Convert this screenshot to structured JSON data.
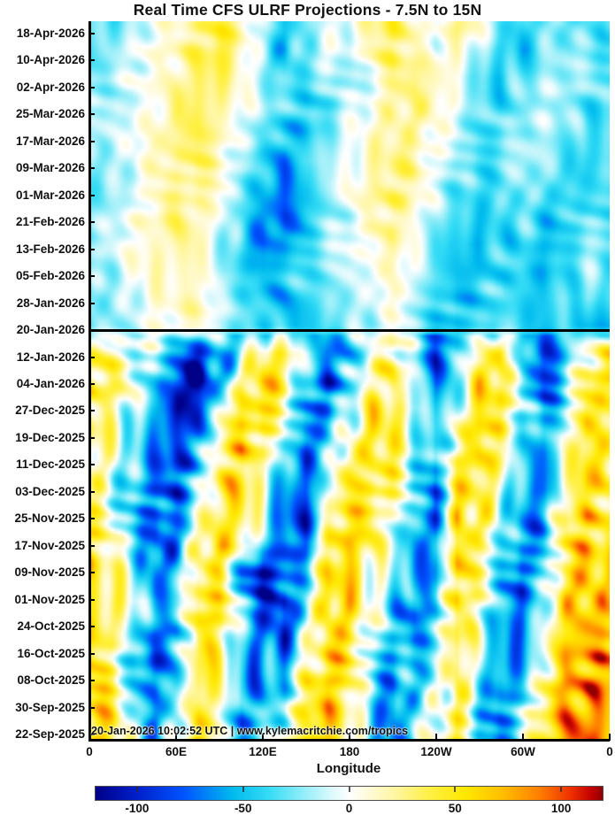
{
  "title": "Real Time CFS ULRF Projections - 7.5N to 15N",
  "watermark": "20-Jan-2026 10:02:52 UTC | www.kylemacritchie.com/tropics",
  "axes": {
    "x_label": "Longitude",
    "x_ticks": [
      "0",
      "60E",
      "120E",
      "180",
      "120W",
      "60W",
      "0"
    ],
    "y_ticks": [
      "18-Apr-2026",
      "10-Apr-2026",
      "02-Apr-2026",
      "25-Mar-2026",
      "17-Mar-2026",
      "09-Mar-2026",
      "01-Mar-2026",
      "21-Feb-2026",
      "13-Feb-2026",
      "05-Feb-2026",
      "28-Jan-2026",
      "20-Jan-2026",
      "12-Jan-2026",
      "04-Jan-2026",
      "27-Dec-2025",
      "19-Dec-2025",
      "11-Dec-2025",
      "03-Dec-2025",
      "25-Nov-2025",
      "17-Nov-2025",
      "09-Nov-2025",
      "01-Nov-2025",
      "24-Oct-2025",
      "16-Oct-2025",
      "08-Oct-2025",
      "30-Sep-2025",
      "22-Sep-2025"
    ]
  },
  "now_line": {
    "date": "20-Jan-2026",
    "y_tick_index": 11
  },
  "colorbar": {
    "tick_labels": [
      "-100",
      "-50",
      "0",
      "50",
      "100"
    ],
    "tick_values": [
      -100,
      -50,
      0,
      50,
      100
    ],
    "range": [
      -120,
      120
    ]
  },
  "chart_data": {
    "type": "heatmap",
    "title": "Real Time CFS ULRF Projections - 7.5N to 15N",
    "xlabel": "Longitude",
    "x_range_deg": [
      0,
      360
    ],
    "x_tick_labels": [
      "0",
      "60E",
      "120E",
      "180",
      "120W",
      "60W",
      "0"
    ],
    "lon_grid_deg": [
      0,
      15,
      30,
      45,
      60,
      75,
      90,
      105,
      120,
      135,
      150,
      165,
      180,
      195,
      210,
      225,
      240,
      255,
      270,
      285,
      300,
      315,
      330,
      345,
      360
    ],
    "y_dates": [
      "18-Apr-2026",
      "10-Apr-2026",
      "02-Apr-2026",
      "25-Mar-2026",
      "17-Mar-2026",
      "09-Mar-2026",
      "01-Mar-2026",
      "21-Feb-2026",
      "13-Feb-2026",
      "05-Feb-2026",
      "28-Jan-2026",
      "20-Jan-2026",
      "12-Jan-2026",
      "04-Jan-2026",
      "27-Dec-2025",
      "19-Dec-2025",
      "11-Dec-2025",
      "03-Dec-2025",
      "25-Nov-2025",
      "17-Nov-2025",
      "09-Nov-2025",
      "01-Nov-2025",
      "24-Oct-2025",
      "16-Oct-2025",
      "08-Oct-2025",
      "30-Sep-2025",
      "22-Sep-2025"
    ],
    "now_line_date": "20-Jan-2026",
    "value_range": [
      -120,
      120
    ],
    "legend_position": "bottom",
    "grid": false,
    "colormap_stops": [
      [
        -120,
        "#000088"
      ],
      [
        -100,
        "#0020CC"
      ],
      [
        -78,
        "#0055FF"
      ],
      [
        -55,
        "#00BBEE"
      ],
      [
        -38,
        "#35DCF5"
      ],
      [
        -20,
        "#9BEFF9"
      ],
      [
        -8,
        "#DDF9FC"
      ],
      [
        0,
        "#FFFFFF"
      ],
      [
        8,
        "#FFFBDD"
      ],
      [
        22,
        "#FFF6A0"
      ],
      [
        38,
        "#FFF045"
      ],
      [
        55,
        "#FFE800"
      ],
      [
        72,
        "#FFC000"
      ],
      [
        90,
        "#FF7F00"
      ],
      [
        105,
        "#EE3000"
      ],
      [
        115,
        "#C00000"
      ],
      [
        120,
        "#900000"
      ]
    ],
    "values": [
      [
        -30,
        -35,
        -15,
        0,
        10,
        30,
        45,
        25,
        -15,
        -50,
        -30,
        -10,
        0,
        25,
        40,
        15,
        -10,
        30,
        15,
        -30,
        -50,
        -25,
        -30,
        -40,
        -30
      ],
      [
        -40,
        -25,
        -10,
        5,
        15,
        35,
        45,
        20,
        -25,
        -60,
        -25,
        -5,
        -10,
        20,
        40,
        20,
        0,
        20,
        -15,
        -45,
        -55,
        -30,
        -20,
        -30,
        -35
      ],
      [
        -30,
        -15,
        -5,
        5,
        20,
        40,
        35,
        10,
        -20,
        -40,
        -35,
        -20,
        -25,
        -5,
        25,
        35,
        15,
        -5,
        -30,
        -50,
        -35,
        -20,
        -15,
        -25,
        -30
      ],
      [
        -25,
        -20,
        -10,
        5,
        25,
        40,
        25,
        0,
        -15,
        -35,
        -45,
        -35,
        -15,
        5,
        20,
        30,
        20,
        -5,
        -35,
        -40,
        -25,
        -15,
        -20,
        -35,
        -40
      ],
      [
        -20,
        -10,
        0,
        15,
        30,
        40,
        20,
        -10,
        -30,
        -55,
        -55,
        -25,
        -5,
        10,
        25,
        20,
        5,
        -15,
        -35,
        -35,
        -20,
        -15,
        -25,
        -45,
        -35
      ],
      [
        -30,
        -20,
        -5,
        15,
        30,
        35,
        10,
        -15,
        -45,
        -70,
        -40,
        -20,
        0,
        15,
        30,
        25,
        0,
        -25,
        -40,
        -30,
        -15,
        -20,
        -35,
        -50,
        -40
      ],
      [
        -35,
        -25,
        -10,
        10,
        25,
        30,
        5,
        -25,
        -60,
        -80,
        -50,
        -20,
        5,
        20,
        35,
        20,
        -10,
        -30,
        -45,
        -35,
        -25,
        -30,
        -45,
        -40,
        -35
      ],
      [
        -25,
        -15,
        0,
        15,
        30,
        25,
        -5,
        -35,
        -70,
        -90,
        -55,
        -30,
        -10,
        15,
        30,
        10,
        -20,
        -40,
        -50,
        -40,
        -35,
        -45,
        -50,
        -35,
        -30
      ],
      [
        -20,
        -10,
        5,
        20,
        25,
        15,
        -15,
        -45,
        -80,
        -70,
        -40,
        -20,
        -5,
        10,
        20,
        0,
        -30,
        -50,
        -60,
        -45,
        -40,
        -55,
        -45,
        -30,
        -25
      ],
      [
        -30,
        -15,
        0,
        15,
        20,
        10,
        -20,
        -45,
        -60,
        -50,
        -30,
        -25,
        -15,
        0,
        15,
        -5,
        -35,
        -55,
        -50,
        -40,
        -45,
        -60,
        -40,
        -25,
        -30
      ],
      [
        -35,
        -20,
        -10,
        5,
        15,
        20,
        -10,
        -35,
        -50,
        -60,
        -45,
        -30,
        -20,
        -10,
        10,
        -15,
        -40,
        -60,
        -45,
        -35,
        -50,
        -55,
        -35,
        -30,
        -40
      ],
      [
        -30,
        -25,
        -15,
        0,
        10,
        15,
        -10,
        -30,
        -45,
        -55,
        -50,
        -35,
        -25,
        -15,
        0,
        -20,
        -45,
        -55,
        -40,
        -30,
        -45,
        -50,
        -45,
        -55,
        -60
      ],
      [
        30,
        20,
        0,
        -25,
        -60,
        -85,
        -60,
        -20,
        40,
        30,
        -20,
        -60,
        -45,
        0,
        30,
        -25,
        -75,
        -35,
        25,
        45,
        -35,
        -80,
        -45,
        20,
        35
      ],
      [
        40,
        30,
        0,
        -30,
        -90,
        -110,
        -55,
        20,
        55,
        35,
        -40,
        -80,
        -30,
        20,
        40,
        -20,
        -70,
        -20,
        40,
        55,
        -30,
        -80,
        -30,
        30,
        50
      ],
      [
        35,
        20,
        -10,
        -45,
        -105,
        -80,
        -10,
        50,
        50,
        0,
        -50,
        -60,
        -10,
        30,
        45,
        0,
        -50,
        -10,
        50,
        45,
        -20,
        -60,
        -20,
        40,
        45
      ],
      [
        30,
        10,
        -20,
        -55,
        -90,
        -60,
        15,
        55,
        40,
        -20,
        -60,
        -40,
        10,
        40,
        40,
        -10,
        -40,
        10,
        55,
        30,
        -30,
        -50,
        0,
        45,
        40
      ],
      [
        25,
        0,
        -30,
        -60,
        -80,
        -40,
        30,
        50,
        20,
        -40,
        -70,
        -20,
        30,
        45,
        30,
        -20,
        -50,
        30,
        50,
        20,
        -40,
        -60,
        10,
        50,
        35
      ],
      [
        20,
        -10,
        -40,
        -70,
        -70,
        -20,
        40,
        45,
        0,
        -50,
        -80,
        0,
        40,
        50,
        20,
        -30,
        -60,
        40,
        45,
        0,
        -50,
        -70,
        20,
        55,
        30
      ],
      [
        30,
        0,
        -30,
        -80,
        -60,
        0,
        45,
        40,
        -20,
        -60,
        -90,
        20,
        50,
        40,
        0,
        -40,
        -70,
        45,
        40,
        -10,
        -60,
        -50,
        30,
        50,
        40
      ],
      [
        40,
        10,
        -20,
        -90,
        -50,
        25,
        50,
        30,
        -40,
        -70,
        -70,
        40,
        55,
        30,
        -10,
        -50,
        -60,
        50,
        30,
        -20,
        -70,
        -40,
        40,
        55,
        45
      ],
      [
        45,
        20,
        -10,
        -70,
        -40,
        40,
        20,
        -60,
        -110,
        -70,
        -30,
        50,
        50,
        20,
        -20,
        -60,
        -50,
        55,
        20,
        -30,
        -80,
        -30,
        45,
        60,
        50
      ],
      [
        50,
        30,
        0,
        -50,
        -30,
        50,
        45,
        -20,
        -70,
        -100,
        -20,
        55,
        45,
        10,
        -30,
        -70,
        -40,
        50,
        10,
        -40,
        -70,
        -20,
        50,
        60,
        55
      ],
      [
        45,
        35,
        -20,
        -60,
        -50,
        45,
        40,
        -30,
        -70,
        -80,
        -10,
        50,
        40,
        0,
        -40,
        -60,
        -30,
        45,
        0,
        -50,
        -60,
        -10,
        55,
        65,
        60
      ],
      [
        40,
        20,
        -40,
        -80,
        -40,
        35,
        30,
        -40,
        -60,
        -60,
        10,
        55,
        35,
        -10,
        -50,
        -50,
        -20,
        40,
        -10,
        -60,
        -50,
        0,
        60,
        70,
        65
      ],
      [
        50,
        30,
        -30,
        -70,
        -30,
        45,
        20,
        -50,
        -50,
        -40,
        30,
        60,
        30,
        -20,
        -60,
        -40,
        -10,
        35,
        -20,
        -70,
        -40,
        20,
        65,
        75,
        70
      ],
      [
        55,
        40,
        -20,
        -60,
        -20,
        50,
        10,
        -60,
        -40,
        -20,
        40,
        65,
        20,
        -30,
        -70,
        -30,
        0,
        30,
        -30,
        -60,
        -30,
        40,
        70,
        80,
        75
      ],
      [
        60,
        45,
        -10,
        -50,
        -10,
        55,
        0,
        -50,
        -30,
        0,
        50,
        70,
        10,
        -40,
        -60,
        -20,
        10,
        25,
        -40,
        -50,
        -20,
        50,
        75,
        85,
        80
      ]
    ]
  }
}
